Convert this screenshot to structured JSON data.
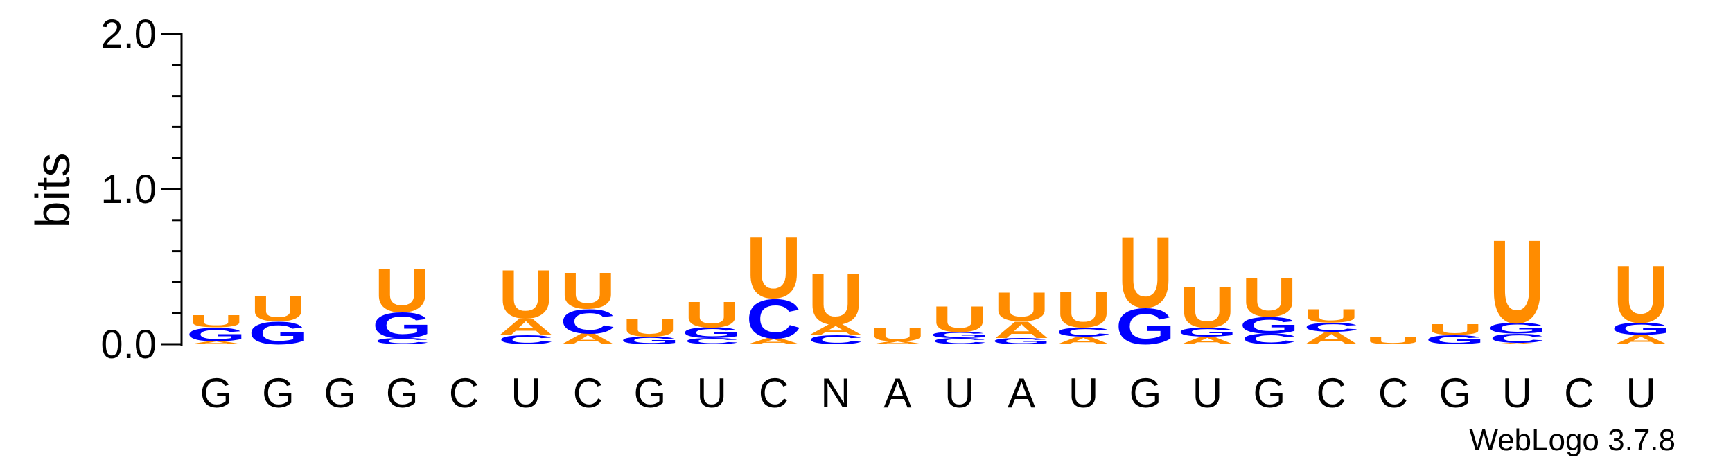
{
  "chart_data": {
    "type": "sequence-logo",
    "title": "",
    "xlabel": "",
    "ylabel": "bits",
    "ylim": [
      0,
      2.0
    ],
    "y_ticks": [
      "0.0",
      "1.0",
      "2.0"
    ],
    "colors": {
      "A": "#ff8c00",
      "U": "#ff8c00",
      "G": "#0000ff",
      "C": "#0000ff"
    },
    "positions": [
      {
        "label": "G",
        "letters": [
          {
            "base": "A",
            "bits": 0.02
          },
          {
            "base": "G",
            "bits": 0.09
          },
          {
            "base": "U",
            "bits": 0.08
          }
        ]
      },
      {
        "label": "G",
        "letters": [
          {
            "base": "G",
            "bits": 0.15
          },
          {
            "base": "U",
            "bits": 0.17
          }
        ]
      },
      {
        "label": "G",
        "letters": []
      },
      {
        "label": "G",
        "letters": [
          {
            "base": "C",
            "bits": 0.04
          },
          {
            "base": "G",
            "bits": 0.17
          },
          {
            "base": "U",
            "bits": 0.29
          }
        ]
      },
      {
        "label": "C",
        "letters": []
      },
      {
        "label": "U",
        "letters": [
          {
            "base": "C",
            "bits": 0.06
          },
          {
            "base": "A",
            "bits": 0.11
          },
          {
            "base": "U",
            "bits": 0.32
          }
        ]
      },
      {
        "label": "C",
        "letters": [
          {
            "base": "A",
            "bits": 0.07
          },
          {
            "base": "C",
            "bits": 0.16
          },
          {
            "base": "U",
            "bits": 0.24
          }
        ]
      },
      {
        "label": "G",
        "letters": [
          {
            "base": "G",
            "bits": 0.05
          },
          {
            "base": "U",
            "bits": 0.12
          }
        ]
      },
      {
        "label": "U",
        "letters": [
          {
            "base": "C",
            "bits": 0.04
          },
          {
            "base": "G",
            "bits": 0.07
          },
          {
            "base": "U",
            "bits": 0.17
          }
        ]
      },
      {
        "label": "C",
        "letters": [
          {
            "base": "A",
            "bits": 0.04
          },
          {
            "base": "C",
            "bits": 0.26
          },
          {
            "base": "U",
            "bits": 0.41
          }
        ]
      },
      {
        "label": "N",
        "letters": [
          {
            "base": "C",
            "bits": 0.06
          },
          {
            "base": "A",
            "bits": 0.07
          },
          {
            "base": "U",
            "bits": 0.34
          }
        ]
      },
      {
        "label": "A",
        "letters": [
          {
            "base": "A",
            "bits": 0.02
          },
          {
            "base": "U",
            "bits": 0.09
          }
        ]
      },
      {
        "label": "U",
        "letters": [
          {
            "base": "C",
            "bits": 0.04
          },
          {
            "base": "G",
            "bits": 0.04
          },
          {
            "base": "U",
            "bits": 0.17
          }
        ]
      },
      {
        "label": "A",
        "letters": [
          {
            "base": "G",
            "bits": 0.04
          },
          {
            "base": "A",
            "bits": 0.11
          },
          {
            "base": "U",
            "bits": 0.19
          }
        ]
      },
      {
        "label": "U",
        "letters": [
          {
            "base": "A",
            "bits": 0.05
          },
          {
            "base": "C",
            "bits": 0.06
          },
          {
            "base": "U",
            "bits": 0.24
          }
        ]
      },
      {
        "label": "G",
        "letters": [
          {
            "base": "G",
            "bits": 0.24
          },
          {
            "base": "U",
            "bits": 0.47
          }
        ]
      },
      {
        "label": "U",
        "letters": [
          {
            "base": "A",
            "bits": 0.05
          },
          {
            "base": "G",
            "bits": 0.06
          },
          {
            "base": "U",
            "bits": 0.27
          }
        ]
      },
      {
        "label": "G",
        "letters": [
          {
            "base": "C",
            "bits": 0.07
          },
          {
            "base": "G",
            "bits": 0.11
          },
          {
            "base": "U",
            "bits": 0.26
          }
        ]
      },
      {
        "label": "C",
        "letters": [
          {
            "base": "A",
            "bits": 0.08
          },
          {
            "base": "C",
            "bits": 0.06
          },
          {
            "base": "U",
            "bits": 0.09
          }
        ]
      },
      {
        "label": "C",
        "letters": [
          {
            "base": "U",
            "bits": 0.05
          }
        ]
      },
      {
        "label": "G",
        "letters": [
          {
            "base": "G",
            "bits": 0.06
          },
          {
            "base": "U",
            "bits": 0.07
          }
        ]
      },
      {
        "label": "U",
        "letters": [
          {
            "base": "A",
            "bits": 0.01
          },
          {
            "base": "C",
            "bits": 0.06
          },
          {
            "base": "G",
            "bits": 0.07
          },
          {
            "base": "U",
            "bits": 0.55
          }
        ]
      },
      {
        "label": "C",
        "letters": []
      },
      {
        "label": "U",
        "letters": [
          {
            "base": "A",
            "bits": 0.06
          },
          {
            "base": "G",
            "bits": 0.08
          },
          {
            "base": "U",
            "bits": 0.38
          }
        ]
      }
    ]
  },
  "footer": {
    "credit": "WebLogo 3.7.8"
  }
}
